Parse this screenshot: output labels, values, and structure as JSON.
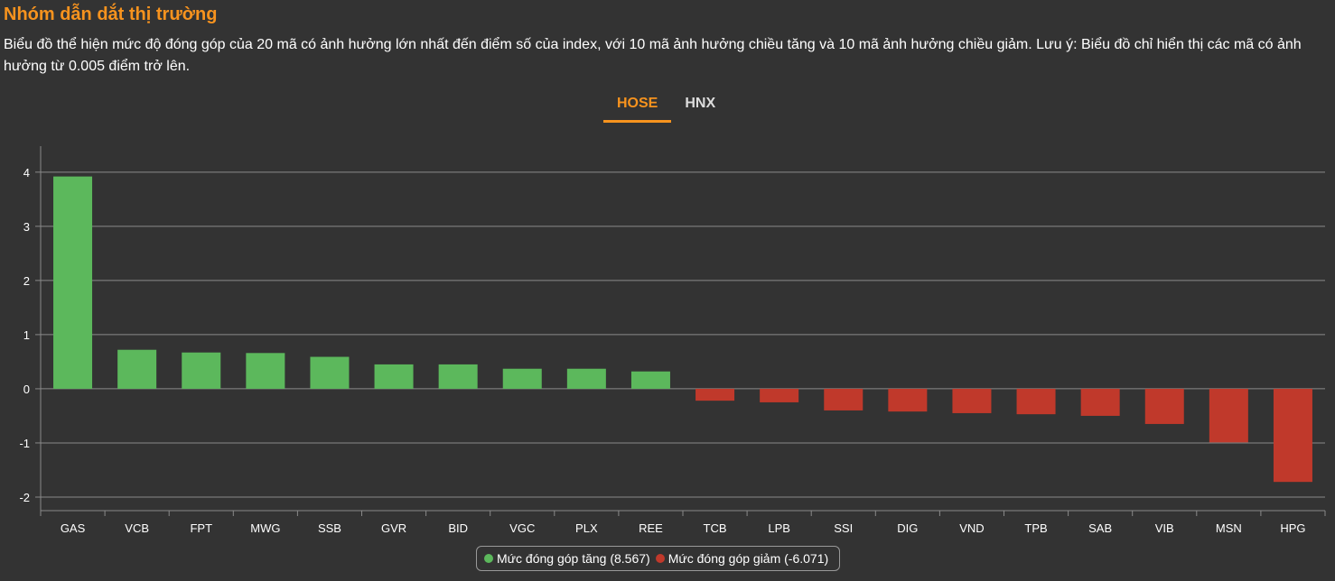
{
  "header": {
    "title": "Nhóm dẫn dắt thị trường",
    "description": "Biểu đồ thể hiện mức độ đóng góp của 20 mã có ảnh hưởng lớn nhất đến điểm số của index, với 10 mã ảnh hưởng chiều tăng và 10 mã ảnh hưởng chiều giảm. Lưu ý: Biểu đồ chỉ hiển thị các mã có ảnh hưởng từ 0.005 điểm trở lên."
  },
  "tabs": [
    {
      "label": "HOSE",
      "active": true
    },
    {
      "label": "HNX",
      "active": false
    }
  ],
  "colors": {
    "accent": "#f7931e",
    "positive": "#5cb85c",
    "negative": "#c0392b",
    "background": "#333333"
  },
  "chart_data": {
    "type": "bar",
    "categories": [
      "GAS",
      "VCB",
      "FPT",
      "MWG",
      "SSB",
      "GVR",
      "BID",
      "VGC",
      "PLX",
      "REE",
      "TCB",
      "LPB",
      "SSI",
      "DIG",
      "VND",
      "TPB",
      "SAB",
      "VIB",
      "MSN",
      "HPG"
    ],
    "values": [
      3.92,
      0.72,
      0.67,
      0.66,
      0.59,
      0.45,
      0.45,
      0.37,
      0.37,
      0.32,
      -0.22,
      -0.25,
      -0.4,
      -0.42,
      -0.45,
      -0.47,
      -0.5,
      -0.65,
      -0.99,
      -1.72
    ],
    "yticks": [
      -2,
      -1,
      0,
      1,
      2,
      3,
      4
    ],
    "ylim": [
      -2.25,
      4.48
    ],
    "grid": true,
    "legend_position": "bottom",
    "legend": [
      {
        "label": "Mức đóng góp tăng (8.567)",
        "color": "#5cb85c"
      },
      {
        "label": "Mức đóng góp giảm (-6.071)",
        "color": "#c0392b"
      }
    ]
  }
}
